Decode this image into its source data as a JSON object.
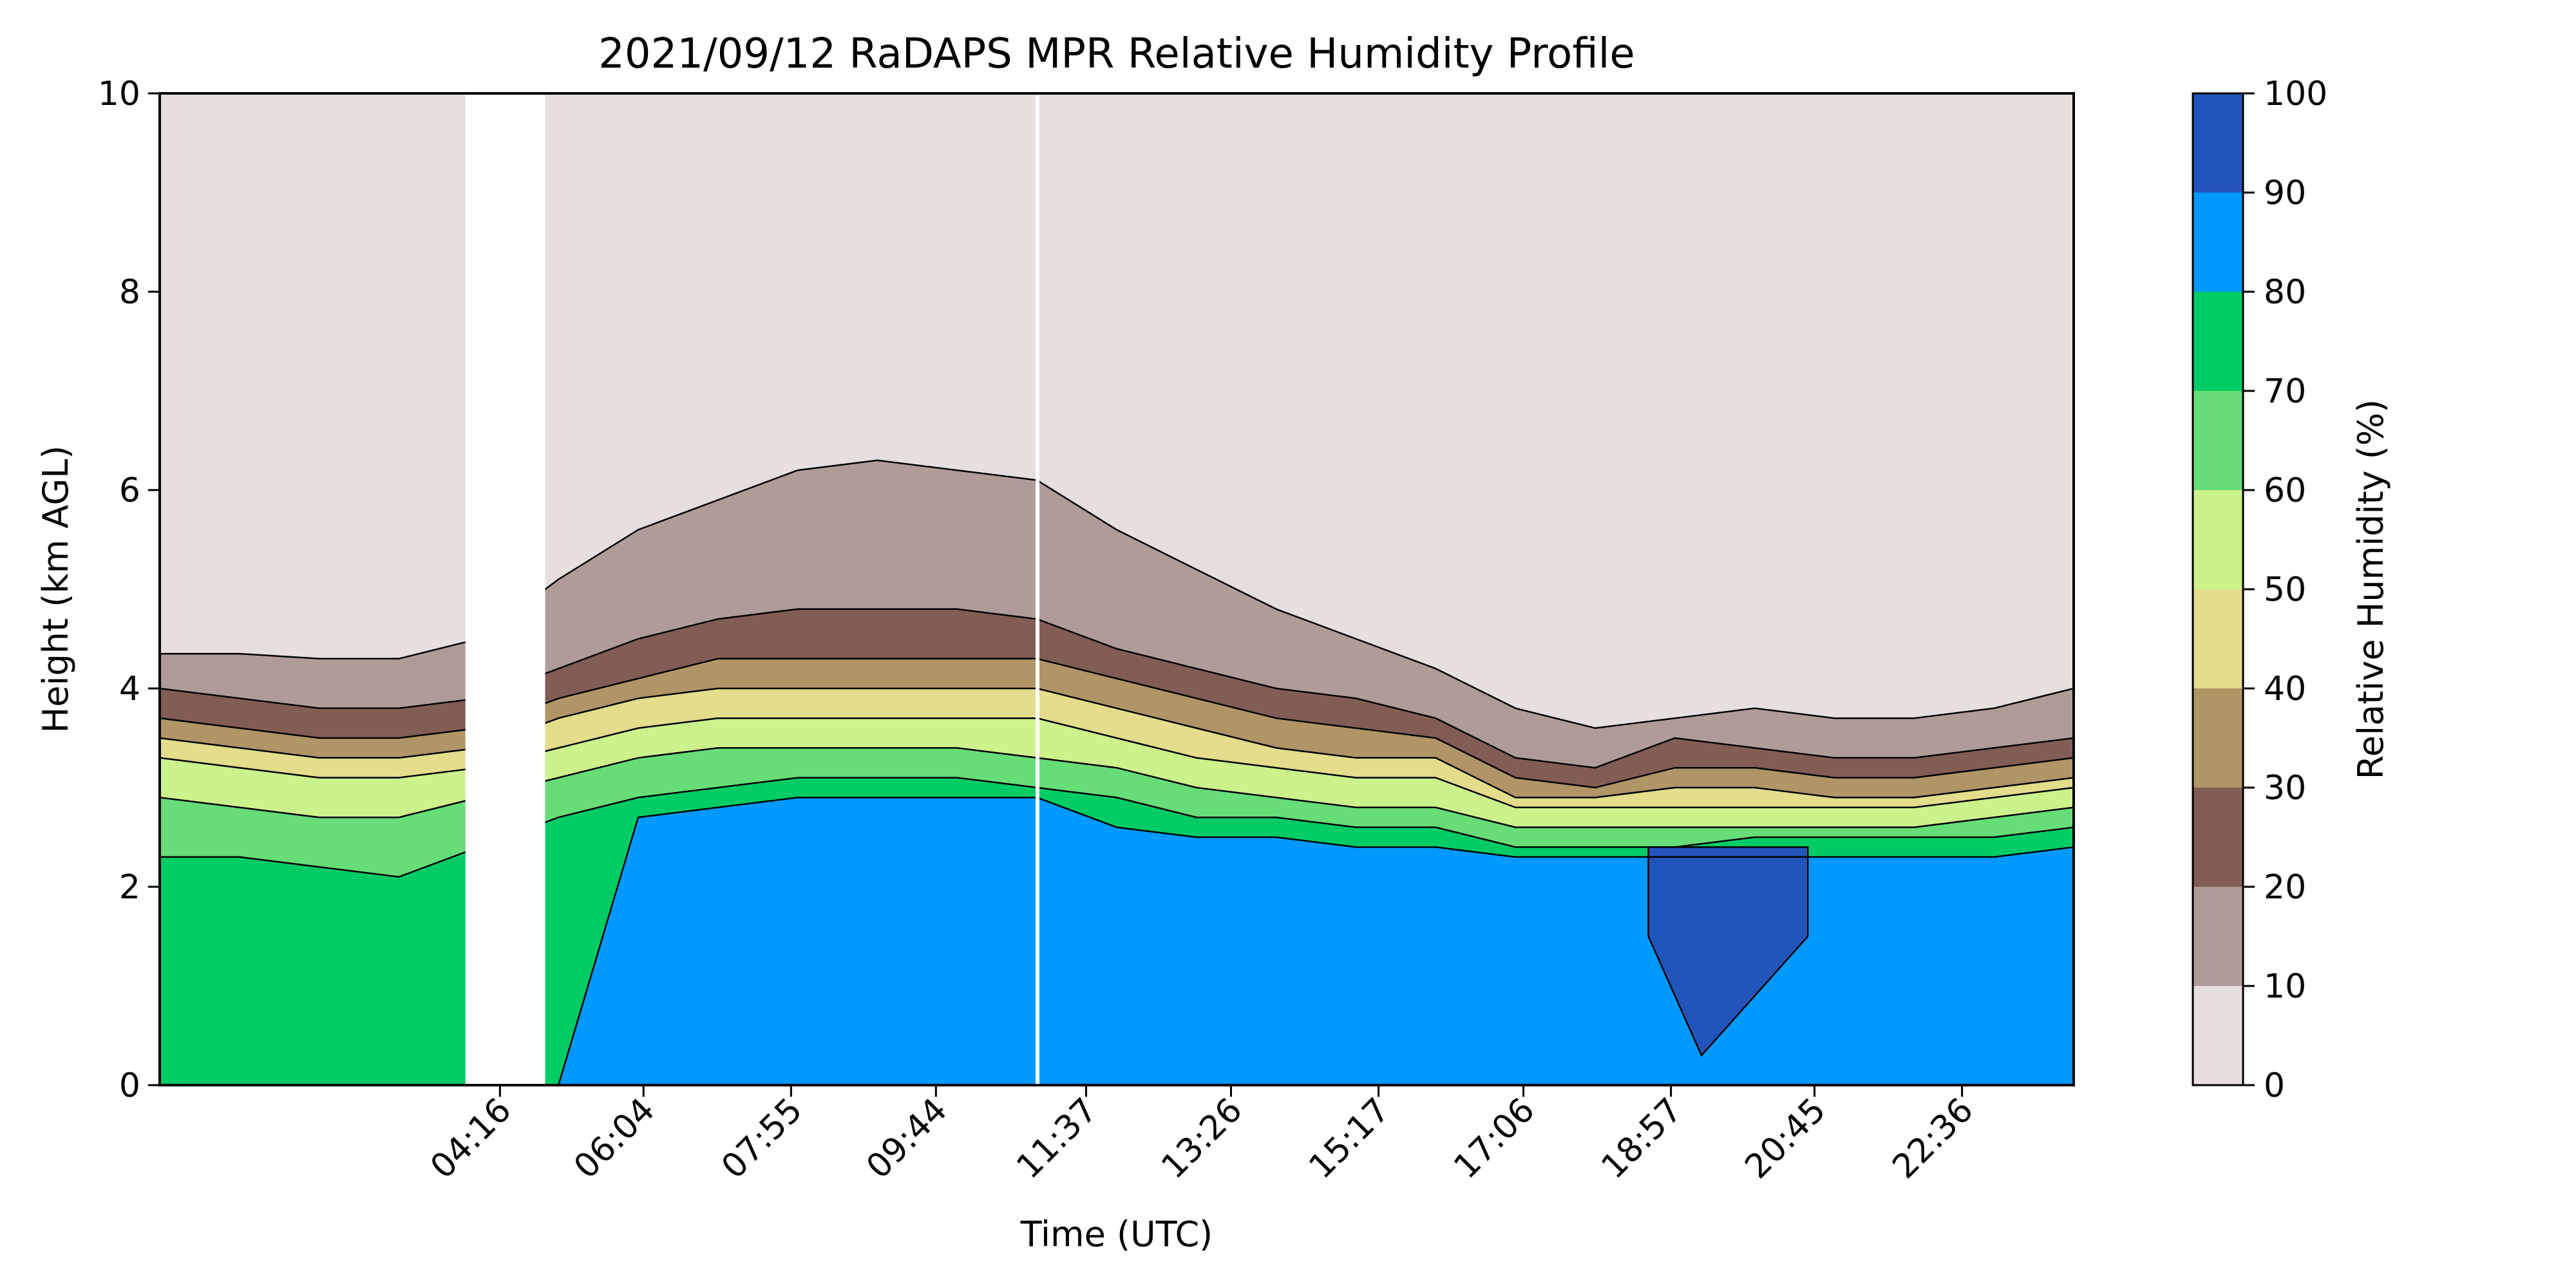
{
  "chart_data": {
    "type": "heatmap",
    "subtype": "filled-contour",
    "title": "2021/09/12 RaDAPS MPR Relative Humidity Profile",
    "xlabel": "Time (UTC)",
    "ylabel": "Height (km AGL)",
    "xlim": [
      "00:00",
      "24:00"
    ],
    "ylim": [
      0,
      10
    ],
    "x_ticks": [
      "04:16",
      "06:04",
      "07:55",
      "09:44",
      "11:37",
      "13:26",
      "15:17",
      "17:06",
      "18:57",
      "20:45",
      "22:36"
    ],
    "y_ticks": [
      0,
      2,
      4,
      6,
      8,
      10
    ],
    "colorbar": {
      "label": "Relative Humidity (%)",
      "ticks": [
        0,
        10,
        20,
        30,
        40,
        50,
        60,
        70,
        80,
        90,
        100
      ],
      "levels": [
        {
          "range": [
            0,
            10
          ],
          "color": "#e6dfdd"
        },
        {
          "range": [
            10,
            20
          ],
          "color": "#b09c96"
        },
        {
          "range": [
            20,
            30
          ],
          "color": "#825d55"
        },
        {
          "range": [
            30,
            40
          ],
          "color": "#b09566"
        },
        {
          "range": [
            40,
            50
          ],
          "color": "#e3dd8c"
        },
        {
          "range": [
            50,
            60
          ],
          "color": "#ccf28c"
        },
        {
          "range": [
            60,
            70
          ],
          "color": "#66dd77"
        },
        {
          "range": [
            70,
            80
          ],
          "color": "#00cc66"
        },
        {
          "range": [
            80,
            90
          ],
          "color": "#0099ff"
        },
        {
          "range": [
            90,
            100
          ],
          "color": "#2255bb"
        }
      ]
    },
    "grid": false,
    "data_gap": {
      "x_start": "03:50",
      "x_end": "04:50"
    },
    "time_axis_hours": [
      0,
      1,
      2,
      3,
      4,
      5,
      6,
      7,
      8,
      9,
      10,
      11,
      12,
      13,
      14,
      15,
      16,
      17,
      18,
      19,
      20,
      21,
      22,
      23,
      24
    ],
    "rh_level_tops_km": {
      "10": [
        4.35,
        4.35,
        4.3,
        4.3,
        4.5,
        5.1,
        5.6,
        5.9,
        6.2,
        6.3,
        6.2,
        6.1,
        5.6,
        5.2,
        4.8,
        4.5,
        4.2,
        3.8,
        3.6,
        3.7,
        3.8,
        3.7,
        3.7,
        3.8,
        4.0
      ],
      "20": [
        4.0,
        3.9,
        3.8,
        3.8,
        3.9,
        4.2,
        4.5,
        4.7,
        4.8,
        4.8,
        4.8,
        4.7,
        4.4,
        4.2,
        4.0,
        3.9,
        3.7,
        3.3,
        3.2,
        3.5,
        3.4,
        3.3,
        3.3,
        3.4,
        3.5
      ],
      "30": [
        3.7,
        3.6,
        3.5,
        3.5,
        3.6,
        3.9,
        4.1,
        4.3,
        4.3,
        4.3,
        4.3,
        4.3,
        4.1,
        3.9,
        3.7,
        3.6,
        3.5,
        3.1,
        3.0,
        3.2,
        3.2,
        3.1,
        3.1,
        3.2,
        3.3
      ],
      "40": [
        3.5,
        3.4,
        3.3,
        3.3,
        3.4,
        3.7,
        3.9,
        4.0,
        4.0,
        4.0,
        4.0,
        4.0,
        3.8,
        3.6,
        3.4,
        3.3,
        3.3,
        2.9,
        2.9,
        3.0,
        3.0,
        2.9,
        2.9,
        3.0,
        3.1
      ],
      "50": [
        3.3,
        3.2,
        3.1,
        3.1,
        3.2,
        3.4,
        3.6,
        3.7,
        3.7,
        3.7,
        3.7,
        3.7,
        3.5,
        3.3,
        3.2,
        3.1,
        3.1,
        2.8,
        2.8,
        2.8,
        2.8,
        2.8,
        2.8,
        2.9,
        3.0
      ],
      "60": [
        2.9,
        2.8,
        2.7,
        2.7,
        2.9,
        3.1,
        3.3,
        3.4,
        3.4,
        3.4,
        3.4,
        3.3,
        3.2,
        3.0,
        2.9,
        2.8,
        2.8,
        2.6,
        2.6,
        2.6,
        2.6,
        2.6,
        2.6,
        2.7,
        2.8
      ],
      "70": [
        2.3,
        2.3,
        2.2,
        2.1,
        2.4,
        2.7,
        2.9,
        3.0,
        3.1,
        3.1,
        3.1,
        3.0,
        2.9,
        2.7,
        2.7,
        2.6,
        2.6,
        2.4,
        2.4,
        2.4,
        2.5,
        2.5,
        2.5,
        2.5,
        2.6
      ],
      "80": [
        0.0,
        0.0,
        0.0,
        0.0,
        0.0,
        0.0,
        2.7,
        2.8,
        2.9,
        2.9,
        2.9,
        2.9,
        2.6,
        2.5,
        2.5,
        2.4,
        2.4,
        2.3,
        2.3,
        2.3,
        2.3,
        2.3,
        2.3,
        2.3,
        2.4
      ]
    }
  }
}
